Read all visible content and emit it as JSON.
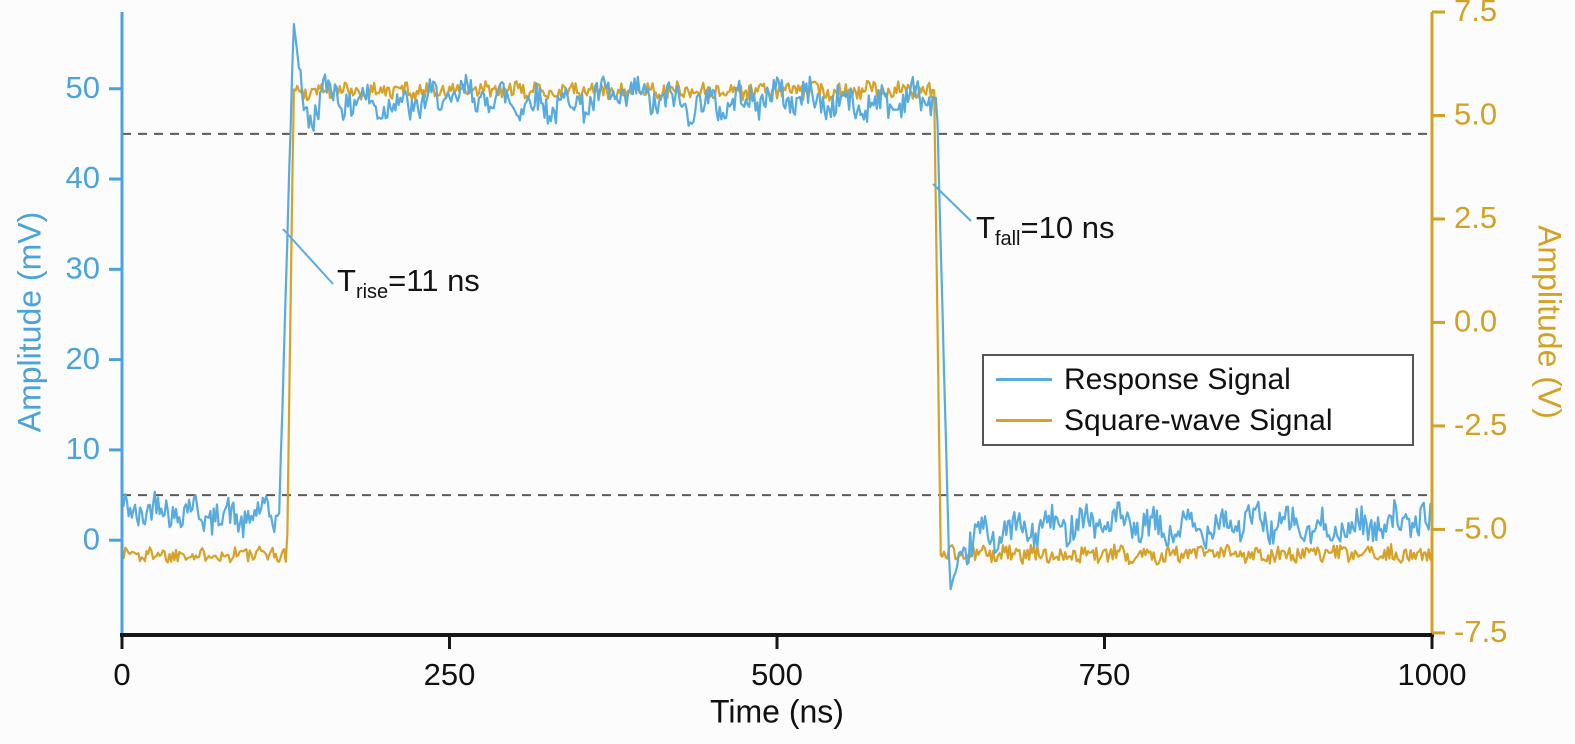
{
  "chart_data": {
    "type": "line",
    "title": "",
    "xlabel": "Time (ns)",
    "xlim": [
      0,
      1000
    ],
    "x_ticks": [
      "0",
      "250",
      "500",
      "750",
      "1000"
    ],
    "left_axis": {
      "label": "Amplitude (mV)",
      "color": "#4aa3dc",
      "ticks": [
        "0",
        "10",
        "20",
        "30",
        "40",
        "50"
      ],
      "lim": [
        -10.5,
        58.5
      ]
    },
    "right_axis": {
      "label": "Amplitude (V)",
      "color": "#d3a124",
      "ticks": [
        "-7.5",
        "-5.0",
        "-2.5",
        "0.0",
        "2.5",
        "5.0",
        "7.5"
      ],
      "lim": [
        -7.55,
        7.5
      ]
    },
    "grid": false,
    "legend_position": "middle-right",
    "threshold_lines_mV": [
      45,
      5
    ],
    "series": [
      {
        "name": "Response Signal",
        "axis": "left",
        "color": "#58abdf",
        "baseline_mV": 3.0,
        "plateau_mV": 48.7,
        "overshoot_peak_mV": 57,
        "undershoot_mV": -6,
        "rise_start_ns": 120,
        "rise_time_ns": 11,
        "fall_start_ns": 622,
        "fall_time_ns": 10,
        "tail_mV": 1.6,
        "noise_mV": 1.6
      },
      {
        "name": "Square-wave Signal",
        "axis": "right",
        "color": "#d6a229",
        "low_V": -5.6,
        "high_V": 5.6,
        "rise_at_ns": 126,
        "fall_at_ns": 620,
        "edge_ns": 5,
        "noise_V": 0.19
      }
    ]
  },
  "annotations": {
    "rise": {
      "main": "T",
      "sub": "rise",
      "rest": "=11 ns"
    },
    "fall": {
      "main": "T",
      "sub": "fall",
      "rest": "=10 ns"
    }
  }
}
